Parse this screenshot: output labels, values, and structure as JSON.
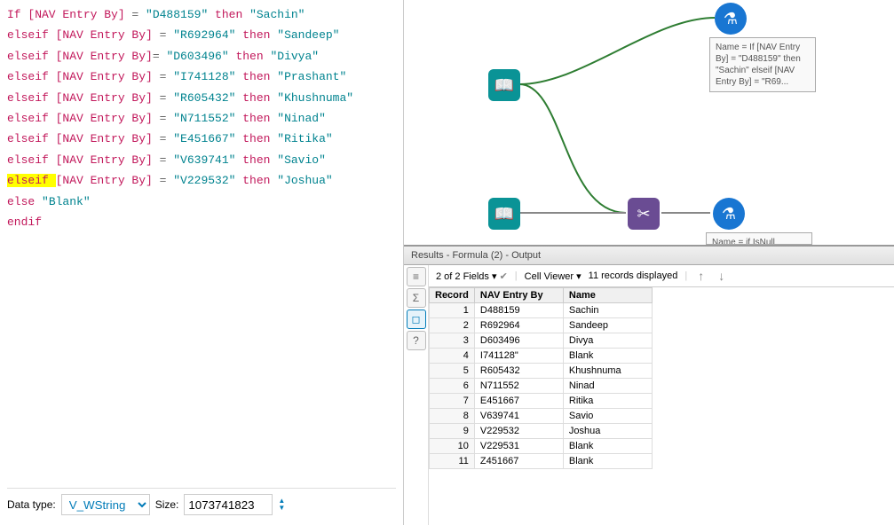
{
  "formula": {
    "lines": [
      {
        "parts": [
          {
            "t": "If ",
            "c": "kw"
          },
          {
            "t": "[NAV Entry By]",
            "c": "field"
          },
          {
            "t": " = ",
            "c": "op"
          },
          {
            "t": "\"D488159\"",
            "c": "str"
          },
          {
            "t": " then ",
            "c": "kw"
          },
          {
            "t": "\"Sachin\"",
            "c": "str"
          }
        ]
      },
      {
        "parts": [
          {
            "t": "elseif ",
            "c": "kw"
          },
          {
            "t": "[NAV Entry By]",
            "c": "field"
          },
          {
            "t": " = ",
            "c": "op"
          },
          {
            "t": "\"R692964\"",
            "c": "str"
          },
          {
            "t": " then ",
            "c": "kw"
          },
          {
            "t": "\"Sandeep\"",
            "c": "str"
          }
        ]
      },
      {
        "parts": [
          {
            "t": "elseif ",
            "c": "kw"
          },
          {
            "t": "[NAV Entry By]",
            "c": "field"
          },
          {
            "t": "= ",
            "c": "op"
          },
          {
            "t": "\"D603496\"",
            "c": "str"
          },
          {
            "t": " then ",
            "c": "kw"
          },
          {
            "t": "\"Divya\"",
            "c": "str"
          }
        ]
      },
      {
        "parts": [
          {
            "t": "elseif ",
            "c": "kw"
          },
          {
            "t": "[NAV Entry By]",
            "c": "field"
          },
          {
            "t": " = ",
            "c": "op"
          },
          {
            "t": "\"I741128\"",
            "c": "str"
          },
          {
            "t": " then ",
            "c": "kw"
          },
          {
            "t": "\"Prashant\"",
            "c": "str"
          }
        ]
      },
      {
        "parts": [
          {
            "t": "elseif ",
            "c": "kw"
          },
          {
            "t": "[NAV Entry By]",
            "c": "field"
          },
          {
            "t": " = ",
            "c": "op"
          },
          {
            "t": "\"R605432\"",
            "c": "str"
          },
          {
            "t": " then ",
            "c": "kw"
          },
          {
            "t": "\"Khushnuma\"",
            "c": "str"
          }
        ]
      },
      {
        "parts": [
          {
            "t": "elseif ",
            "c": "kw"
          },
          {
            "t": "[NAV Entry By]",
            "c": "field"
          },
          {
            "t": " = ",
            "c": "op"
          },
          {
            "t": "\"N711552\"",
            "c": "str"
          },
          {
            "t": " then ",
            "c": "kw"
          },
          {
            "t": "\"Ninad\"",
            "c": "str"
          }
        ]
      },
      {
        "parts": [
          {
            "t": "elseif ",
            "c": "kw"
          },
          {
            "t": "[NAV Entry By]",
            "c": "field"
          },
          {
            "t": " = ",
            "c": "op"
          },
          {
            "t": "\"E451667\"",
            "c": "str"
          },
          {
            "t": " then ",
            "c": "kw"
          },
          {
            "t": "\"Ritika\"",
            "c": "str"
          }
        ]
      },
      {
        "parts": [
          {
            "t": "elseif ",
            "c": "kw"
          },
          {
            "t": "[NAV Entry By]",
            "c": "field"
          },
          {
            "t": " = ",
            "c": "op"
          },
          {
            "t": "\"V639741\"",
            "c": "str"
          },
          {
            "t": " then ",
            "c": "kw"
          },
          {
            "t": "\"Savio\"",
            "c": "str"
          }
        ]
      },
      {
        "parts": [
          {
            "t": "elseif ",
            "c": "kw",
            "hl": true
          },
          {
            "t": "[NAV Entry By]",
            "c": "field"
          },
          {
            "t": " = ",
            "c": "op"
          },
          {
            "t": "\"V229532\"",
            "c": "str"
          },
          {
            "t": " then ",
            "c": "kw"
          },
          {
            "t": "\"Joshua\"",
            "c": "str"
          }
        ]
      },
      {
        "parts": [
          {
            "t": "else ",
            "c": "kw"
          },
          {
            "t": "\"Blank\"",
            "c": "str"
          }
        ]
      },
      {
        "parts": [
          {
            "t": "endif",
            "c": "kw"
          }
        ]
      }
    ]
  },
  "datatype": {
    "label": "Data type:",
    "value": "V_WString",
    "size_label": "Size:",
    "size_value": "1073741823"
  },
  "canvas": {
    "tool_label_1": "Name = If [NAV Entry By] = \"D488159\" then \"Sachin\"\n\nelseif [NAV Entry By] = \"R69...",
    "tool_label_2": "Name = if IsNull ([Name]) then"
  },
  "results": {
    "header": "Results - Formula (2) - Output",
    "fields_label": "2 of 2 Fields",
    "cell_viewer_label": "Cell Viewer",
    "records_label": "11 records displayed",
    "columns": [
      "Record",
      "NAV Entry By",
      "Name"
    ],
    "rows": [
      [
        "1",
        "D488159",
        "Sachin"
      ],
      [
        "2",
        "R692964",
        "Sandeep"
      ],
      [
        "3",
        "D603496",
        "Divya"
      ],
      [
        "4",
        "I741128\"",
        "Blank"
      ],
      [
        "5",
        "R605432",
        "Khushnuma"
      ],
      [
        "6",
        "N711552",
        "Ninad"
      ],
      [
        "7",
        "E451667",
        "Ritika"
      ],
      [
        "8",
        "V639741",
        "Savio"
      ],
      [
        "9",
        "V229532",
        "Joshua"
      ],
      [
        "10",
        "V229531",
        "Blank"
      ],
      [
        "11",
        "Z451667",
        "Blank"
      ]
    ]
  },
  "colors": {
    "keyword": "#c2185b",
    "string": "#00838f",
    "highlight": "#ffff00",
    "tool_green": "#0a9396",
    "tool_purple": "#6a4c93",
    "tool_blue": "#1976d2"
  }
}
